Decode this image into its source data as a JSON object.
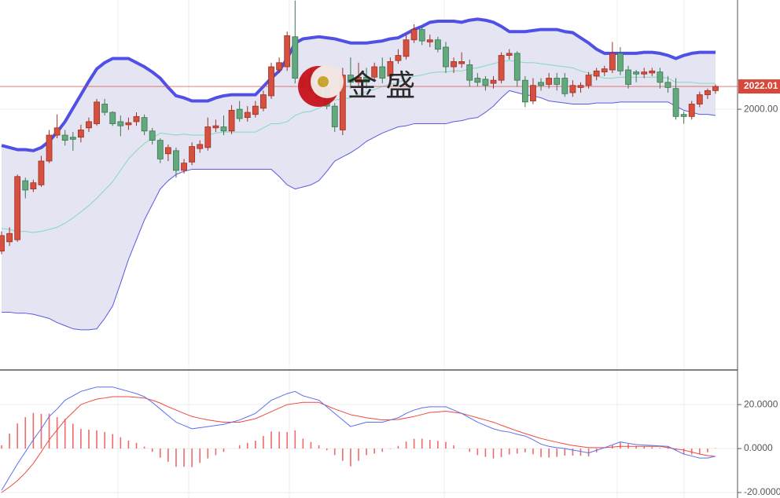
{
  "chart_data": [
    {
      "type": "candlestick",
      "watermark": "金 盛",
      "open": [
        1863,
        1872,
        1874,
        1931,
        1923,
        1927,
        1950,
        1975,
        1975,
        1973,
        1973,
        1982,
        1986,
        2005,
        1997,
        1988,
        1985,
        1988,
        1992,
        1979,
        1970,
        1957,
        1960,
        1941,
        1949,
        1962,
        1963,
        1982,
        1983,
        1979,
        2000,
        1992,
        1995,
        2001,
        2013,
        2038,
        2041,
        2070,
        2030,
        2033,
        2025,
        2020,
        2003,
        1980,
        2033,
        2026,
        2031,
        2031,
        2041,
        2032,
        2047,
        2051,
        2067,
        2077,
        2065,
        2067,
        2060,
        2041,
        2044,
        2043,
        2030,
        2029,
        2025,
        2028,
        2052,
        2054,
        2028,
        2008,
        2026,
        2024,
        2030,
        2030,
        2016,
        2021,
        2023,
        2032,
        2036,
        2038,
        2054,
        2038,
        2036,
        2034,
        2035,
        2036,
        2026,
        2020,
        1995,
        1993,
        2005,
        2014,
        2018
      ],
      "high": [
        1882,
        1886,
        1937,
        1934,
        1932,
        1955,
        1980,
        1995,
        1980,
        1978,
        1985,
        1992,
        2010,
        2010,
        1998,
        1994,
        1992,
        1997,
        1995,
        1982,
        1972,
        1966,
        1963,
        1952,
        1968,
        1970,
        1992,
        1990,
        1994,
        2004,
        2008,
        2003,
        2008,
        2018,
        2045,
        2050,
        2075,
        2105,
        2035,
        2040,
        2030,
        2025,
        2006,
        2040,
        2050,
        2045,
        2040,
        2045,
        2050,
        2050,
        2058,
        2072,
        2082,
        2080,
        2072,
        2070,
        2065,
        2050,
        2055,
        2048,
        2035,
        2032,
        2032,
        2055,
        2058,
        2056,
        2032,
        2030,
        2030,
        2035,
        2035,
        2035,
        2028,
        2026,
        2036,
        2040,
        2042,
        2065,
        2060,
        2042,
        2038,
        2040,
        2040,
        2040,
        2032,
        2030,
        1998,
        2008,
        2017,
        2020,
        2024
      ],
      "low": [
        1860,
        1868,
        1872,
        1914,
        1920,
        1925,
        1948,
        1972,
        1965,
        1960,
        1968,
        1978,
        1984,
        1994,
        1984,
        1974,
        1980,
        1984,
        1975,
        1966,
        1948,
        1950,
        1934,
        1938,
        1946,
        1958,
        1960,
        1978,
        1975,
        1976,
        1988,
        1988,
        1992,
        1998,
        2010,
        2035,
        2037,
        2025,
        2018,
        2015,
        2005,
        2000,
        1978,
        1975,
        2020,
        2022,
        2020,
        2028,
        2025,
        2028,
        2044,
        2048,
        2064,
        2062,
        2060,
        2055,
        2035,
        2035,
        2040,
        2022,
        2022,
        2018,
        2020,
        2025,
        2048,
        2022,
        2002,
        2005,
        2018,
        2020,
        2018,
        2012,
        2012,
        2016,
        2020,
        2028,
        2032,
        2035,
        2033,
        2020,
        2026,
        2030,
        2032,
        2020,
        2016,
        1990,
        1986,
        1990,
        2002,
        2010,
        2015
      ],
      "close": [
        1878,
        1880,
        1935,
        1922,
        1929,
        1950,
        1975,
        1982,
        1970,
        1971,
        1980,
        1988,
        2007,
        1997,
        1986,
        1984,
        1987,
        1993,
        1979,
        1970,
        1952,
        1963,
        1941,
        1948,
        1964,
        1966,
        1983,
        1984,
        1979,
        1999,
        1991,
        1997,
        2003,
        2014,
        2041,
        2045,
        2071,
        2030,
        2021,
        2018,
        2011,
        2003,
        1983,
        2033,
        2026,
        2031,
        2026,
        2041,
        2030,
        2046,
        2052,
        2067,
        2077,
        2066,
        2067,
        2058,
        2041,
        2046,
        2046,
        2028,
        2026,
        2023,
        2028,
        2052,
        2054,
        2028,
        2007,
        2023,
        2023,
        2030,
        2024,
        2015,
        2023,
        2023,
        2033,
        2037,
        2039,
        2054,
        2037,
        2024,
        2034,
        2036,
        2037,
        2026,
        2021,
        1993,
        1993,
        2005,
        2014,
        2018,
        2022.01
      ],
      "up_color": "#d5503f",
      "up_edge": "#9e2f22",
      "down_color": "#62a97e",
      "down_edge": "#3b7652",
      "bands": {
        "upper": [
          1965,
          1963,
          1961,
          1961,
          1960,
          1963,
          1969,
          1978,
          1988,
          2001,
          2014,
          2027,
          2039,
          2045,
          2049,
          2049,
          2049,
          2045,
          2041,
          2036,
          2030,
          2021,
          2013,
          2011,
          2008,
          2008,
          2008,
          2011,
          2013,
          2014,
          2014,
          2014,
          2014,
          2022,
          2030,
          2037,
          2049,
          2064,
          2068,
          2069,
          2070,
          2069,
          2068,
          2066,
          2064,
          2064,
          2064,
          2065,
          2066,
          2068,
          2069,
          2073,
          2077,
          2080,
          2084,
          2085,
          2085,
          2085,
          2084,
          2086,
          2087,
          2086,
          2084,
          2080,
          2075,
          2075,
          2075,
          2076,
          2077,
          2077,
          2077,
          2075,
          2074,
          2069,
          2064,
          2058,
          2054,
          2054,
          2054,
          2054,
          2054,
          2055,
          2055,
          2054,
          2052,
          2049,
          2052,
          2054,
          2055,
          2055,
          2055
        ],
        "middle": [
          1885,
          1884,
          1882,
          1882,
          1881,
          1882,
          1884,
          1886,
          1890,
          1895,
          1901,
          1907,
          1914,
          1922,
          1930,
          1941,
          1952,
          1960,
          1967,
          1972,
          1977,
          1976,
          1975,
          1976,
          1975,
          1975,
          1975,
          1977,
          1978,
          1978,
          1978,
          1978,
          1978,
          1982,
          1986,
          1986,
          1988,
          1994,
          1997,
          1998,
          2001,
          2005,
          2009,
          2010,
          2011,
          2014,
          2017,
          2019,
          2022,
          2024,
          2026,
          2029,
          2032,
          2033,
          2035,
          2036,
          2036,
          2037,
          2037,
          2039,
          2040,
          2042,
          2044,
          2046,
          2047,
          2046,
          2045,
          2045,
          2044,
          2043,
          2042,
          2041,
          2040,
          2037,
          2035,
          2032,
          2030,
          2030,
          2031,
          2031,
          2031,
          2031,
          2031,
          2031,
          2030,
          2026,
          2026,
          2026,
          2025,
          2025,
          2025
        ],
        "lower": [
          1804,
          1804,
          1803,
          1803,
          1802,
          1800,
          1798,
          1794,
          1791,
          1788,
          1787,
          1787,
          1788,
          1798,
          1810,
          1832,
          1855,
          1874,
          1893,
          1908,
          1923,
          1931,
          1937,
          1940,
          1942,
          1942,
          1942,
          1942,
          1942,
          1942,
          1942,
          1942,
          1942,
          1942,
          1942,
          1935,
          1927,
          1923,
          1925,
          1927,
          1931,
          1940,
          1950,
          1954,
          1958,
          1963,
          1969,
          1973,
          1977,
          1980,
          1983,
          1984,
          1986,
          1986,
          1986,
          1986,
          1986,
          1988,
          1989,
          1991,
          1992,
          1997,
          2003,
          2011,
          2018,
          2016,
          2014,
          2013,
          2011,
          2008,
          2007,
          2006,
          2005,
          2005,
          2005,
          2006,
          2006,
          2006,
          2007,
          2007,
          2007,
          2007,
          2007,
          2007,
          2007,
          2003,
          1999,
          1997,
          1995,
          1995,
          1994
        ],
        "fill": "#e4e4f2",
        "upper_color": "#5050e6",
        "middle_color": "#86d8bd",
        "lower_color": "#5a5ae0"
      },
      "ylim": [
        1749,
        2105.5
      ],
      "yticks": [
        {
          "value": 2000,
          "label": "2000.00"
        }
      ],
      "last_price": {
        "value": 2022.01,
        "label": "2022.01"
      },
      "last_price_color": "#d9473a"
    },
    {
      "type": "macd",
      "dif": [
        -19,
        -13,
        -7,
        -1.5,
        4,
        9,
        14.6,
        18,
        22,
        24,
        26,
        27,
        28,
        28,
        28,
        27,
        26,
        25,
        23.6,
        21,
        18,
        15,
        12,
        10.5,
        9,
        9.5,
        10,
        10.5,
        11,
        12,
        13,
        14.5,
        16,
        19,
        22,
        23.5,
        25,
        26,
        24,
        23,
        22,
        19,
        16,
        13,
        10,
        11,
        12,
        12,
        12,
        13,
        14,
        16,
        17.5,
        18.5,
        19,
        19,
        19,
        17.5,
        16,
        14,
        12,
        10.5,
        9,
        8,
        7.5,
        6.5,
        5.7,
        4,
        2,
        1,
        0.4,
        0,
        -0.7,
        -1.3,
        -2,
        -0.8,
        0.4,
        1.7,
        3,
        2.4,
        1.8,
        1.6,
        1.4,
        1.2,
        1,
        -0.8,
        -2.5,
        -3.4,
        -4.3,
        -4.3,
        -3.5
      ],
      "dea": [
        -20,
        -17.5,
        -14.6,
        -11,
        -6.8,
        -1.5,
        4,
        8.5,
        13,
        16.5,
        20,
        21.3,
        22.5,
        23,
        23.6,
        23.6,
        23.6,
        23.3,
        23,
        22,
        20.7,
        19,
        17.5,
        16,
        14.6,
        13.8,
        13,
        12.5,
        12,
        12,
        12,
        12.8,
        13.6,
        15.2,
        16.8,
        18.4,
        20,
        20.5,
        21,
        21,
        21,
        19.5,
        18,
        16.7,
        15.4,
        14.7,
        14,
        13.5,
        13,
        13.1,
        13.2,
        13.9,
        14.6,
        15.5,
        16.4,
        16.7,
        17,
        16.5,
        16,
        15,
        14,
        13,
        12,
        10.6,
        9.3,
        8,
        6.8,
        5.7,
        4.6,
        3.7,
        2.9,
        2.1,
        1.4,
        0.9,
        0.4,
        0.4,
        0.4,
        0.7,
        1,
        1,
        1,
        1,
        1,
        1,
        0.4,
        -0.2,
        -0.7,
        -1.6,
        -2.5,
        -3.2,
        -3.6
      ],
      "histogram": [
        1.5,
        6.8,
        11.4,
        14.3,
        16.2,
        15.8,
        15.9,
        14.3,
        13.5,
        11.3,
        9,
        8.6,
        8.3,
        7.5,
        6.6,
        5.1,
        3.6,
        2.6,
        0.9,
        -1.5,
        -4.1,
        -6,
        -8.3,
        -8.3,
        -8.4,
        -6.5,
        -4.5,
        -3,
        -1.5,
        0,
        1.5,
        2.6,
        3.6,
        5.7,
        7.8,
        7.7,
        7.5,
        8.3,
        4.5,
        3,
        1.5,
        -0.8,
        -3,
        -5.6,
        -8.1,
        -5.6,
        -3,
        -2.3,
        -1.5,
        -0.2,
        1.2,
        3.2,
        4.4,
        4.5,
        3.9,
        3.5,
        3,
        1.5,
        0,
        -1.5,
        -3,
        -3.8,
        -4.5,
        -3.9,
        -2.7,
        -2.3,
        -1.7,
        -2.6,
        -3.9,
        -4.1,
        -3.8,
        -3.2,
        -3.2,
        -3.3,
        -3.6,
        -1.8,
        0,
        1.5,
        3,
        2.1,
        1.2,
        0.9,
        0.6,
        0.3,
        0.9,
        -0.9,
        -2.7,
        -2.7,
        -2.7,
        -1.7,
        0.2
      ],
      "dif_color": "#5c6ff0",
      "dea_color": "#ec4b40",
      "hist_color": "#f06a6a",
      "ylim": [
        -22.5,
        35.4
      ],
      "yticks": [
        {
          "value": 20,
          "label": "20.0000"
        },
        {
          "value": 0,
          "label": "0.0000"
        },
        {
          "value": -20,
          "label": "-20.0000"
        }
      ]
    }
  ]
}
